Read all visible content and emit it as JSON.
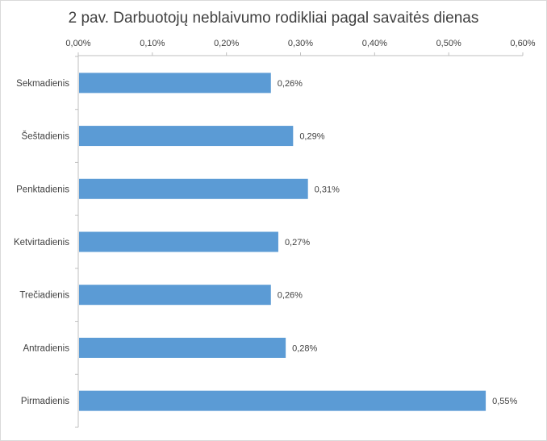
{
  "chart_data": {
    "type": "bar",
    "orientation": "horizontal",
    "title": "2 pav. Darbuotojų neblaivumo rodikliai pagal savaitės dienas",
    "xlabel": "",
    "ylabel": "",
    "xlim": [
      0,
      0.6
    ],
    "x_ticks": [
      "0,00%",
      "0,10%",
      "0,20%",
      "0,30%",
      "0,40%",
      "0,50%",
      "0,60%"
    ],
    "x_axis_position": "top",
    "categories": [
      "Sekmadienis",
      "Šeštadienis",
      "Penktadienis",
      "Ketvirtadienis",
      "Trečiadienis",
      "Antradienis",
      "Pirmadienis"
    ],
    "values": [
      0.26,
      0.29,
      0.31,
      0.27,
      0.26,
      0.28,
      0.55
    ],
    "data_labels": [
      "0,26%",
      "0,29%",
      "0,31%",
      "0,27%",
      "0,26%",
      "0,28%",
      "0,55%"
    ],
    "bar_color": "#5b9bd5",
    "grid": false,
    "legend": "none"
  }
}
